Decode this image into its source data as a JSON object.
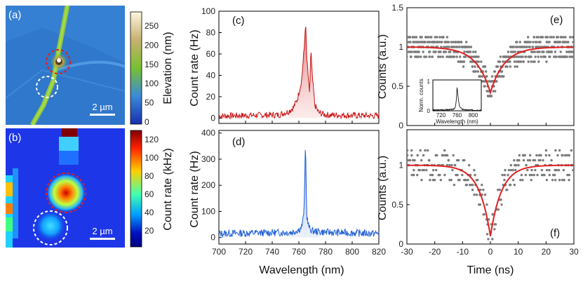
{
  "panel_labels": {
    "a": "(a)",
    "b": "(b)",
    "c": "(c)",
    "d": "(d)",
    "e": "(e)",
    "f": "(f)"
  },
  "colors": {
    "red": "#c81414",
    "blue": "#1f5fd6",
    "gray": "#7a7a7a",
    "fit": "#e02020"
  },
  "chart_data": [
    {
      "panel": "a",
      "type": "heatmap",
      "title": "",
      "colorbar_label": "Elevation (nm)",
      "colorbar_ticks": [
        "250",
        "200",
        "150",
        "100",
        "50",
        "0"
      ],
      "scale_bar": "2 µm",
      "colormap": [
        "#fff6e0",
        "#c8b070",
        "#78c030",
        "#3a8ad8",
        "#1830b0"
      ]
    },
    {
      "panel": "b",
      "type": "heatmap",
      "title": "",
      "colorbar_label": "Count rate (kHz)",
      "colorbar_ticks": [
        "120",
        "100",
        "80",
        "60",
        "40",
        "20"
      ],
      "scale_bar": "2 µm",
      "colormap": [
        "#800000",
        "#ff2000",
        "#ffd000",
        "#40ffb0",
        "#00a0ff",
        "#0010c0",
        "#000080"
      ]
    },
    {
      "panel": "c",
      "type": "line",
      "ylabel": "Count rate (Hz)",
      "xlim": [
        700,
        820
      ],
      "ylim": [
        -5,
        100
      ],
      "yticks": [
        0,
        20,
        40,
        60,
        80,
        100
      ],
      "series": [
        {
          "x": [
            700,
            745,
            752,
            756,
            759,
            762,
            764,
            765,
            766,
            768,
            769,
            770,
            772,
            775,
            780,
            820
          ],
          "values": [
            2,
            3,
            6,
            10,
            18,
            35,
            65,
            90,
            55,
            22,
            65,
            40,
            12,
            5,
            3,
            2
          ]
        }
      ]
    },
    {
      "panel": "d",
      "type": "line",
      "xlabel": "Wavelength (nm)",
      "ylabel": "Count rate (Hz)",
      "xlim": [
        700,
        820
      ],
      "ylim": [
        -25,
        410
      ],
      "xticks": [
        700,
        720,
        740,
        760,
        780,
        800,
        820
      ],
      "yticks": [
        0,
        100,
        200,
        300,
        400
      ],
      "series": [
        {
          "x": [
            700,
            755,
            760,
            762,
            763,
            764,
            765,
            765.5,
            766,
            767,
            768,
            770,
            780,
            820
          ],
          "values": [
            15,
            20,
            30,
            40,
            60,
            120,
            385,
            200,
            80,
            50,
            35,
            25,
            20,
            15
          ]
        }
      ]
    },
    {
      "panel": "e",
      "type": "scatter",
      "ylabel": "Counts (a.u.)",
      "xlim": [
        -30,
        30
      ],
      "ylim": [
        0,
        1.5
      ],
      "yticks": [
        0,
        0.5,
        1,
        1.5
      ],
      "ytick_labels": [
        "0",
        "0.5",
        "1",
        "1.5"
      ],
      "fit": {
        "g2_min": 0.42,
        "tau_ns": 5
      },
      "inset": {
        "xlabel": "Wavelength (nm)",
        "ylabel": "Norm. counts",
        "xticks": [
          "720",
          "760",
          "800"
        ],
        "yticks": [
          "0",
          "1"
        ],
        "x": [
          700,
          750,
          755,
          758,
          760,
          762,
          765,
          768,
          772,
          780,
          820
        ],
        "values": [
          0.02,
          0.04,
          0.1,
          0.3,
          0.75,
          0.5,
          0.2,
          0.1,
          0.06,
          0.03,
          0.02
        ]
      }
    },
    {
      "panel": "f",
      "type": "scatter",
      "xlabel": "Time (ns)",
      "ylabel": "Counts (a.u.)",
      "xlim": [
        -30,
        30
      ],
      "ylim": [
        0,
        1.45
      ],
      "xticks": [
        -30,
        -20,
        -10,
        0,
        10,
        20,
        30
      ],
      "yticks": [
        0,
        0.5,
        1
      ],
      "ytick_labels": [
        "0",
        "0.5",
        "1"
      ],
      "fit": {
        "g2_min": 0.1,
        "tau_ns": 4
      }
    }
  ]
}
